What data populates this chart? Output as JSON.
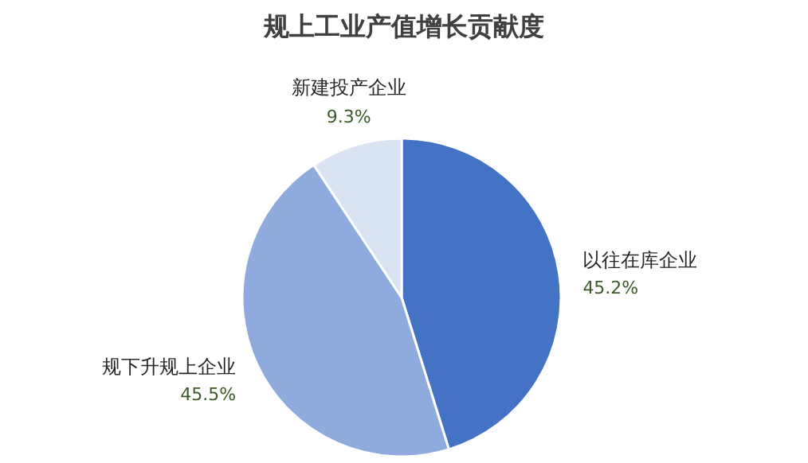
{
  "chart_data": {
    "type": "pie",
    "title": "规上工业产值增长贡献度",
    "categories": [
      "以往在库企业",
      "规下升规上企业",
      "新建投产企业"
    ],
    "values": [
      45.2,
      45.5,
      9.3
    ],
    "colors": [
      "#4472c4",
      "#8faadc",
      "#dae3f3"
    ],
    "value_labels": [
      "45.2%",
      "45.5%",
      "9.3%"
    ]
  }
}
